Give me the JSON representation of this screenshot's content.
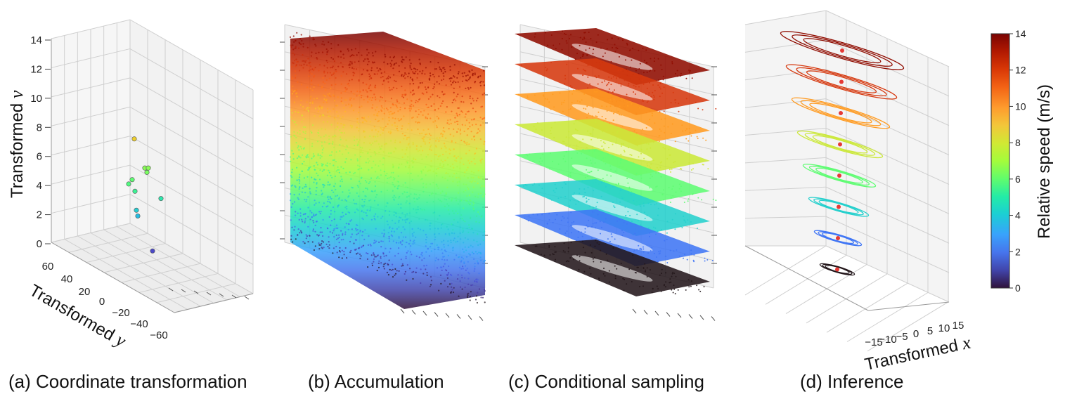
{
  "captions": {
    "a": "(a) Coordinate transformation",
    "b": "(b) Accumulation",
    "c": "(c) Conditional sampling",
    "d": "(d) Inference"
  },
  "colorbar": {
    "label": "Relative speed (m/s)",
    "ticks": [
      "0",
      "2",
      "4",
      "6",
      "8",
      "10",
      "12",
      "14"
    ],
    "range": [
      0,
      14
    ],
    "colormap": "turbo"
  },
  "chart_data": [
    {
      "type": "scatter",
      "panel": "a",
      "zlabel_text": "Transformed",
      "zlabel_var": "v",
      "ylabel_text": "Transformed",
      "ylabel_var": "y",
      "z_ticks": [
        "0",
        "2",
        "4",
        "6",
        "8",
        "10",
        "12",
        "14"
      ],
      "y_ticks": [
        "60",
        "40",
        "20",
        "0",
        "−20",
        "−40",
        "−60"
      ],
      "zlim": [
        0,
        14
      ],
      "ylim": [
        -60,
        60
      ],
      "points_v": [
        8.8,
        6.8,
        6.8,
        6.5,
        6.0,
        5.7,
        5.2,
        4.7,
        3.9,
        3.5,
        1.1
      ]
    },
    {
      "type": "scatter",
      "panel": "b",
      "description_series": "dense point cloud colored by relative speed",
      "zlim": [
        0,
        14
      ]
    },
    {
      "type": "scatter",
      "panel": "c",
      "slice_levels": [
        0,
        2,
        4,
        6,
        8,
        10,
        12,
        14
      ],
      "zlim": [
        0,
        14
      ]
    },
    {
      "type": "line",
      "panel": "d",
      "xlabel_text": "Transformed",
      "xlabel_var": "x",
      "x_ticks": [
        "−15",
        "−10",
        "−5",
        "0",
        "5",
        "10",
        "15"
      ],
      "contour_levels": [
        0,
        2,
        4,
        6,
        8,
        10,
        12,
        14
      ],
      "xlim": [
        -15,
        15
      ]
    }
  ]
}
